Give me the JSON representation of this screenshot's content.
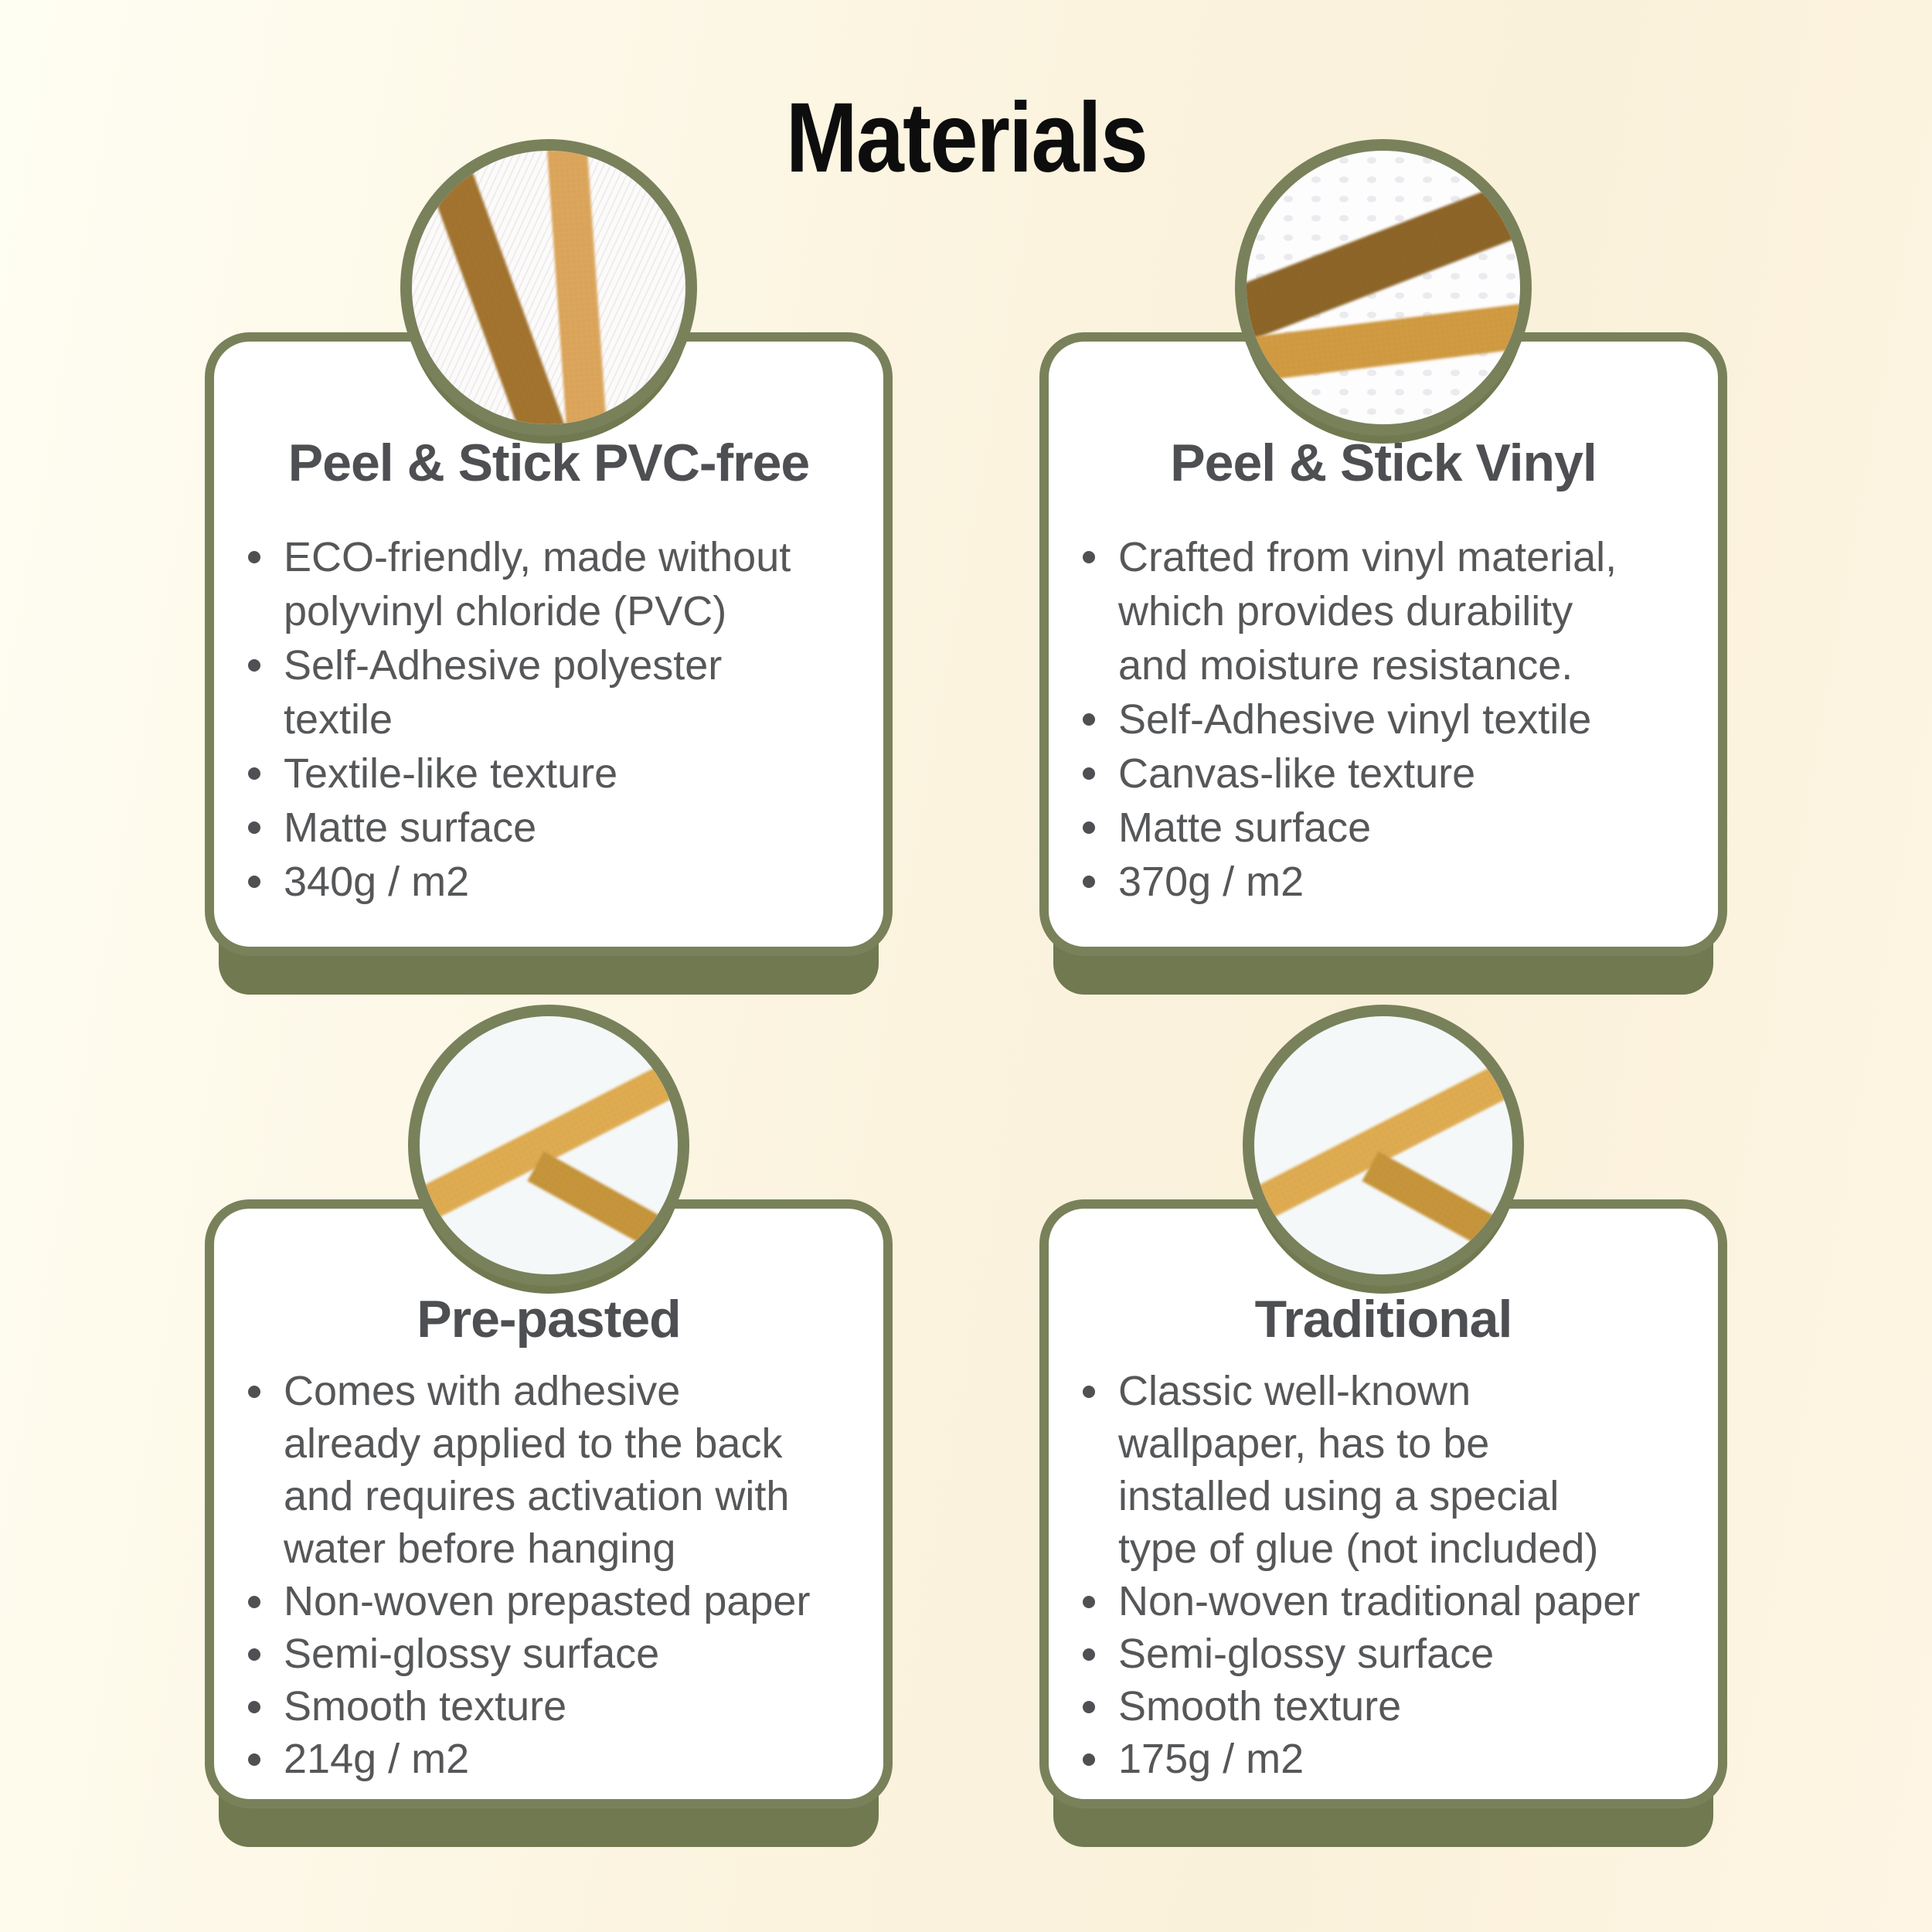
{
  "page": {
    "title": "Materials",
    "colors": {
      "background_left": "#FFFEF3",
      "background_mid": "#FAF2DC",
      "background_right": "#FEF5E4",
      "card_background": "#FFFFFF",
      "card_border_olive": "#79815B",
      "card_shadow_olive": "#707950",
      "heading_text": "#0D0D0D",
      "card_title_text": "#4E4F52",
      "body_text": "#565759",
      "stripe_dark_brown": "#A3742F",
      "stripe_deep_brown": "#8D6528",
      "stripe_gold": "#DCA65C",
      "stripe_deep_gold": "#C6953B"
    }
  },
  "cards": [
    {
      "title": "Peel & Stick PVC-free",
      "swatch_icon": "textile-swatch-two-brown-stripes",
      "bullets": [
        "ECO-friendly, made without polyvinyl chloride (PVC)",
        "Self-Adhesive polyester textile",
        "Textile-like texture",
        "Matte surface",
        "340g / m2"
      ]
    },
    {
      "title": "Peel & Stick Vinyl",
      "swatch_icon": "canvas-swatch-crossing-brown-gold-stripes",
      "bullets": [
        "Crafted from vinyl material, which provides durability and moisture resistance.",
        "Self-Adhesive vinyl textile",
        "Canvas-like texture",
        "Matte surface",
        "370g / m2"
      ]
    },
    {
      "title": "Pre-pasted",
      "swatch_icon": "smooth-paper-swatch-gold-stripes",
      "bullets": [
        "Comes with adhesive already applied to the back and requires activation with water before hanging",
        "Non-woven prepasted paper",
        "Semi-glossy surface",
        "Smooth texture",
        "214g / m2"
      ]
    },
    {
      "title": "Traditional",
      "swatch_icon": "smooth-paper-swatch-gold-stripes",
      "bullets": [
        "Classic well-known wallpaper, has to be installed using a special type of glue (not included)",
        "Non-woven traditional paper",
        "Semi-glossy surface",
        "Smooth texture",
        "175g / m2"
      ]
    }
  ]
}
